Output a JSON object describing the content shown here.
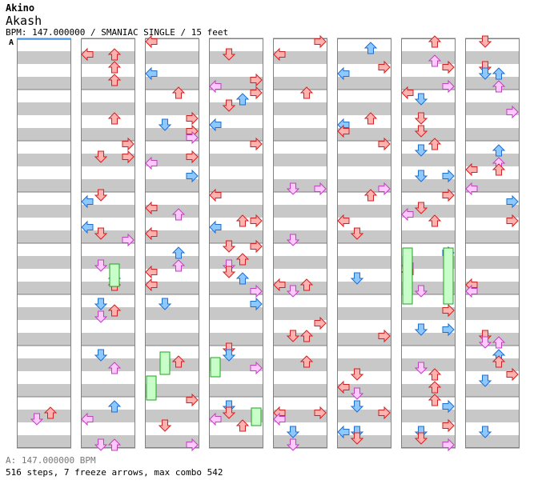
{
  "header": {
    "artist": "Akino",
    "title": "Akash",
    "info": "BPM: 147.000000 / SMANIAC SINGLE / 15 feet"
  },
  "chart": {
    "bpm_marker": "A",
    "columns": 8,
    "measures_per_column": 8,
    "colors": {
      "stripe": "#c8c8c8",
      "border": "#808080",
      "red_fill": "#ffb0b0",
      "red_stroke": "#d02020",
      "blue_fill": "#8ec8ff",
      "blue_stroke": "#1a6fd0",
      "pink_fill": "#ffc8ff",
      "pink_stroke": "#c040c0",
      "freeze_fill": "#c8ffc8",
      "freeze_stroke": "#20a020",
      "marker_line": "#3399ff"
    },
    "arrow_kinds": [
      "left-arrow-icon",
      "down-arrow-icon",
      "up-arrow-icon",
      "right-arrow-icon"
    ]
  },
  "footer": {
    "bpm_line": "A: 147.000000 BPM",
    "stats": "516 steps, 7 freeze arrows, max combo 542"
  }
}
